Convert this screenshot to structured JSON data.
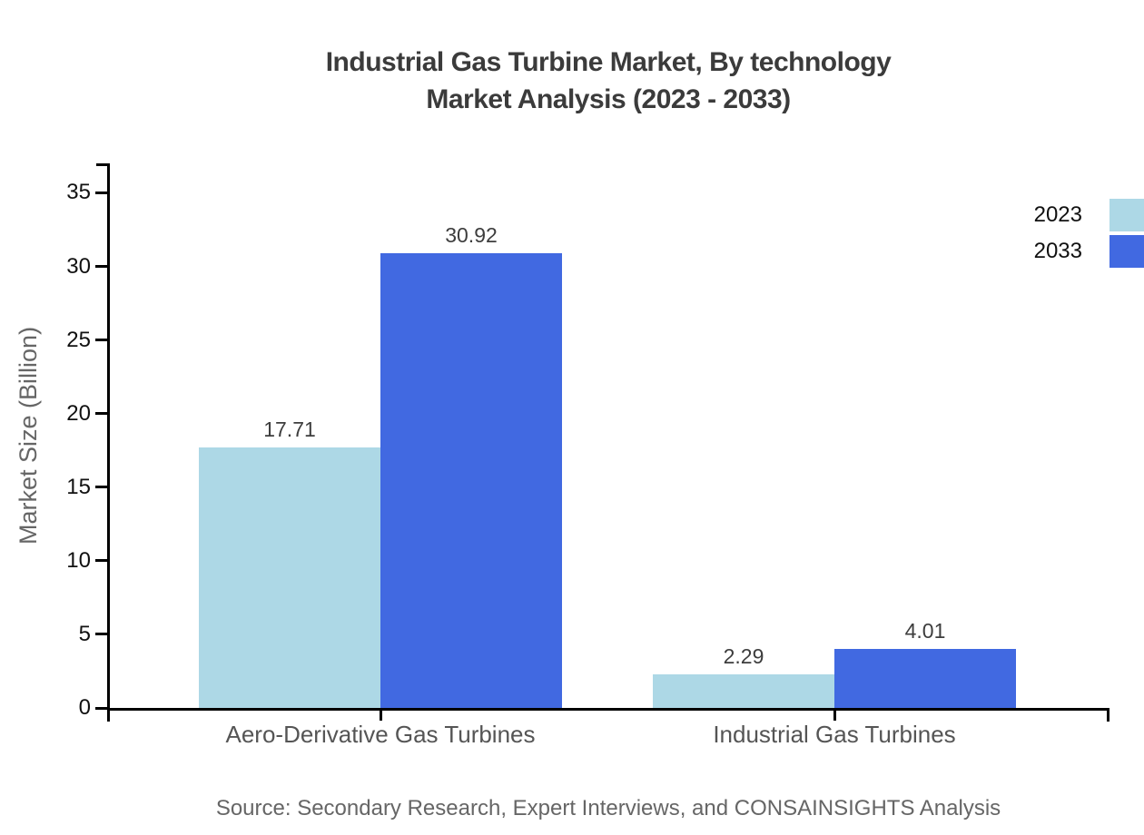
{
  "source": "Source: Secondary Research, Expert Interviews, and CONSAINSIGHTS Analysis",
  "chart_data": {
    "type": "bar",
    "title": "Industrial Gas Turbine Market, By technology Market Analysis (2023 - 2033)",
    "title_lines": [
      "Industrial Gas Turbine Market, By technology",
      "Market Analysis (2023 - 2033)"
    ],
    "categories": [
      "Aero-Derivative Gas Turbines",
      "Industrial Gas Turbines"
    ],
    "series": [
      {
        "name": "2023",
        "color": "#add8e6",
        "values": [
          17.71,
          2.29
        ]
      },
      {
        "name": "2033",
        "color": "#4169e1",
        "values": [
          30.92,
          4.01
        ]
      }
    ],
    "xlabel": "",
    "ylabel": "Market Size (Billion)",
    "ylim": [
      0,
      37
    ],
    "yticks": [
      0,
      5,
      10,
      15,
      20,
      25,
      30,
      35
    ],
    "grid": false,
    "value_labels": true,
    "value_label_format": "0.00",
    "legend_position": "top-right",
    "bar_colors": {
      "2023": "#add8e6",
      "2033": "#4169e1"
    },
    "axis_color": "#000000"
  }
}
